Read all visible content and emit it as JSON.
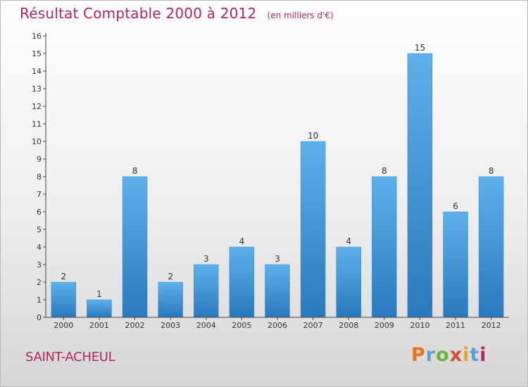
{
  "header": {
    "title": "Résultat Comptable 2000 à 2012",
    "unit": "(en milliers d'€)"
  },
  "footer": {
    "commune": "SAINT-ACHEUL",
    "brand": "Proxiti"
  },
  "colors": {
    "title": "#b3255f",
    "bar_top": "#5eb0ea",
    "bar_bottom": "#2a79bd",
    "brand_letters": [
      "#e8731a",
      "#5a9fd6",
      "#6cb33f",
      "#d64b3a",
      "#e8a71a",
      "#5a9fd6",
      "#b3255f"
    ]
  },
  "chart_data": {
    "type": "bar",
    "title": "Résultat Comptable 2000 à 2012",
    "ylabel": "(en milliers d'€)",
    "xlabel": "",
    "categories": [
      "2000",
      "2001",
      "2002",
      "2003",
      "2004",
      "2005",
      "2006",
      "2007",
      "2008",
      "2009",
      "2010",
      "2011",
      "2012"
    ],
    "values": [
      2,
      1,
      8,
      2,
      3,
      4,
      3,
      10,
      4,
      8,
      15,
      6,
      8
    ],
    "ylim": [
      0,
      16
    ],
    "yticks": [
      0,
      1,
      2,
      3,
      4,
      5,
      6,
      7,
      8,
      9,
      10,
      11,
      12,
      13,
      14,
      15,
      16
    ],
    "grid": false,
    "data_labels": true
  }
}
